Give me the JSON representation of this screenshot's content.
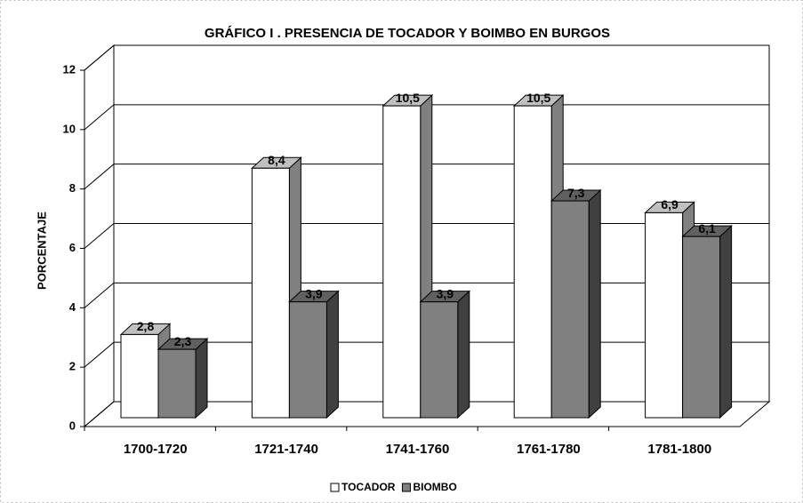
{
  "chart_data": {
    "type": "bar3d",
    "title": "GRÁFICO I  . PRESENCIA DE TOCADOR Y BOIMBO EN BURGOS",
    "y_label": "PORCENTAJE",
    "categories": [
      "1700-1720",
      "1721-1740",
      "1741-1760",
      "1761-1780",
      "1781-1800"
    ],
    "series": [
      {
        "name": "TOCADOR",
        "color": "#ffffff",
        "values": [
          2.8,
          8.4,
          10.5,
          10.5,
          6.9
        ],
        "value_labels": [
          "2,8",
          "8,4",
          "10,5",
          "10,5",
          "6,9"
        ]
      },
      {
        "name": "BIOMBO",
        "color": "#808080",
        "values": [
          2.3,
          3.9,
          3.9,
          7.3,
          6.1
        ],
        "value_labels": [
          "2,3",
          "3,9",
          "3,9",
          "7,3",
          "6,1"
        ]
      }
    ],
    "ylim": [
      0,
      12
    ],
    "yticks": [
      0,
      2,
      4,
      6,
      8,
      10,
      12
    ],
    "grid": true,
    "legend": "bottom"
  }
}
